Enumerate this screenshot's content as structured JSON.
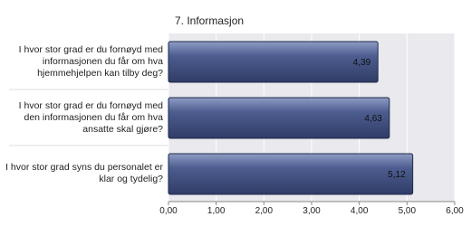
{
  "chart_data": {
    "type": "bar",
    "orientation": "horizontal",
    "title": "7. Informasjon",
    "categories": [
      "I hvor stor grad er du fornøyd med informasjonen du får om hva hjemmehjelpen kan tilby deg?",
      "I hvor stor grad er du fornøyd med den informasjonen du får om hva ansatte skal gjøre?",
      "I hvor stor grad syns du personalet er klar og tydelig?"
    ],
    "values": [
      4.39,
      4.63,
      5.12
    ],
    "value_labels": [
      "4,39",
      "4,63",
      "5,12"
    ],
    "color": "#4d5d8f",
    "xlim": [
      0,
      6
    ],
    "xticks": [
      {
        "value": 0,
        "label": "0,00"
      },
      {
        "value": 1,
        "label": "1,00"
      },
      {
        "value": 2,
        "label": "2,00"
      },
      {
        "value": 3,
        "label": "3,00"
      },
      {
        "value": 4,
        "label": "4,00"
      },
      {
        "value": 5,
        "label": "5,00"
      },
      {
        "value": 6,
        "label": "6,00"
      }
    ],
    "grid": true
  }
}
